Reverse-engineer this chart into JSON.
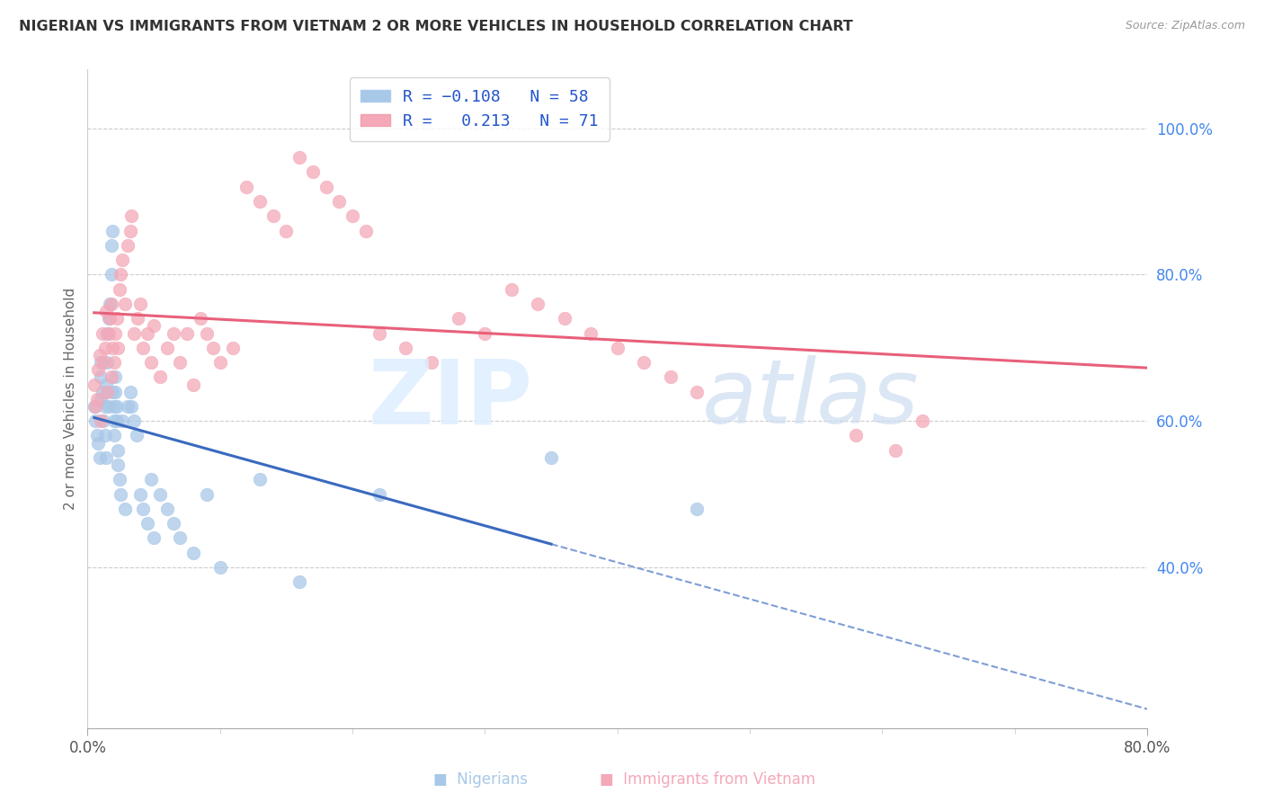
{
  "title": "NIGERIAN VS IMMIGRANTS FROM VIETNAM 2 OR MORE VEHICLES IN HOUSEHOLD CORRELATION CHART",
  "source": "Source: ZipAtlas.com",
  "ylabel": "2 or more Vehicles in Household",
  "ytick_labels": [
    "40.0%",
    "60.0%",
    "80.0%",
    "100.0%"
  ],
  "ytick_values": [
    0.4,
    0.6,
    0.8,
    1.0
  ],
  "xlim": [
    0.0,
    0.8
  ],
  "ylim": [
    0.18,
    1.08
  ],
  "footer_blue": "Nigerians",
  "footer_pink": "Immigrants from Vietnam",
  "blue_color": "#a8c8e8",
  "pink_color": "#f4a8b8",
  "blue_line_color": "#3a6abf",
  "pink_line_color": "#e8607a",
  "blue_R": -0.108,
  "blue_N": 58,
  "pink_R": 0.213,
  "pink_N": 71,
  "blue_scatter_x": [
    0.005,
    0.006,
    0.007,
    0.008,
    0.009,
    0.01,
    0.01,
    0.01,
    0.011,
    0.012,
    0.013,
    0.013,
    0.014,
    0.014,
    0.015,
    0.015,
    0.016,
    0.016,
    0.017,
    0.018,
    0.018,
    0.019,
    0.019,
    0.02,
    0.02,
    0.02,
    0.021,
    0.021,
    0.022,
    0.022,
    0.023,
    0.023,
    0.024,
    0.025,
    0.026,
    0.028,
    0.03,
    0.032,
    0.033,
    0.035,
    0.037,
    0.04,
    0.042,
    0.045,
    0.048,
    0.05,
    0.055,
    0.06,
    0.065,
    0.07,
    0.08,
    0.09,
    0.1,
    0.13,
    0.16,
    0.22,
    0.35,
    0.46
  ],
  "blue_scatter_y": [
    0.62,
    0.6,
    0.58,
    0.57,
    0.55,
    0.63,
    0.66,
    0.68,
    0.64,
    0.6,
    0.62,
    0.58,
    0.65,
    0.55,
    0.68,
    0.72,
    0.74,
    0.62,
    0.76,
    0.8,
    0.84,
    0.86,
    0.64,
    0.62,
    0.6,
    0.58,
    0.66,
    0.64,
    0.62,
    0.6,
    0.56,
    0.54,
    0.52,
    0.5,
    0.6,
    0.48,
    0.62,
    0.64,
    0.62,
    0.6,
    0.58,
    0.5,
    0.48,
    0.46,
    0.52,
    0.44,
    0.5,
    0.48,
    0.46,
    0.44,
    0.42,
    0.5,
    0.4,
    0.52,
    0.38,
    0.5,
    0.55,
    0.48
  ],
  "pink_scatter_x": [
    0.005,
    0.006,
    0.007,
    0.008,
    0.009,
    0.01,
    0.011,
    0.012,
    0.013,
    0.014,
    0.015,
    0.016,
    0.017,
    0.018,
    0.018,
    0.019,
    0.02,
    0.021,
    0.022,
    0.023,
    0.024,
    0.025,
    0.026,
    0.028,
    0.03,
    0.032,
    0.033,
    0.035,
    0.038,
    0.04,
    0.042,
    0.045,
    0.048,
    0.05,
    0.055,
    0.06,
    0.065,
    0.07,
    0.075,
    0.08,
    0.085,
    0.09,
    0.095,
    0.1,
    0.11,
    0.12,
    0.13,
    0.14,
    0.15,
    0.16,
    0.17,
    0.18,
    0.19,
    0.2,
    0.21,
    0.22,
    0.24,
    0.26,
    0.28,
    0.3,
    0.32,
    0.34,
    0.36,
    0.38,
    0.4,
    0.42,
    0.44,
    0.46,
    0.58,
    0.61,
    0.63
  ],
  "pink_scatter_y": [
    0.65,
    0.62,
    0.63,
    0.67,
    0.69,
    0.6,
    0.72,
    0.68,
    0.7,
    0.75,
    0.64,
    0.72,
    0.74,
    0.66,
    0.76,
    0.7,
    0.68,
    0.72,
    0.74,
    0.7,
    0.78,
    0.8,
    0.82,
    0.76,
    0.84,
    0.86,
    0.88,
    0.72,
    0.74,
    0.76,
    0.7,
    0.72,
    0.68,
    0.73,
    0.66,
    0.7,
    0.72,
    0.68,
    0.72,
    0.65,
    0.74,
    0.72,
    0.7,
    0.68,
    0.7,
    0.92,
    0.9,
    0.88,
    0.86,
    0.96,
    0.94,
    0.92,
    0.9,
    0.88,
    0.86,
    0.72,
    0.7,
    0.68,
    0.74,
    0.72,
    0.78,
    0.76,
    0.74,
    0.72,
    0.7,
    0.68,
    0.66,
    0.64,
    0.58,
    0.56,
    0.6
  ]
}
